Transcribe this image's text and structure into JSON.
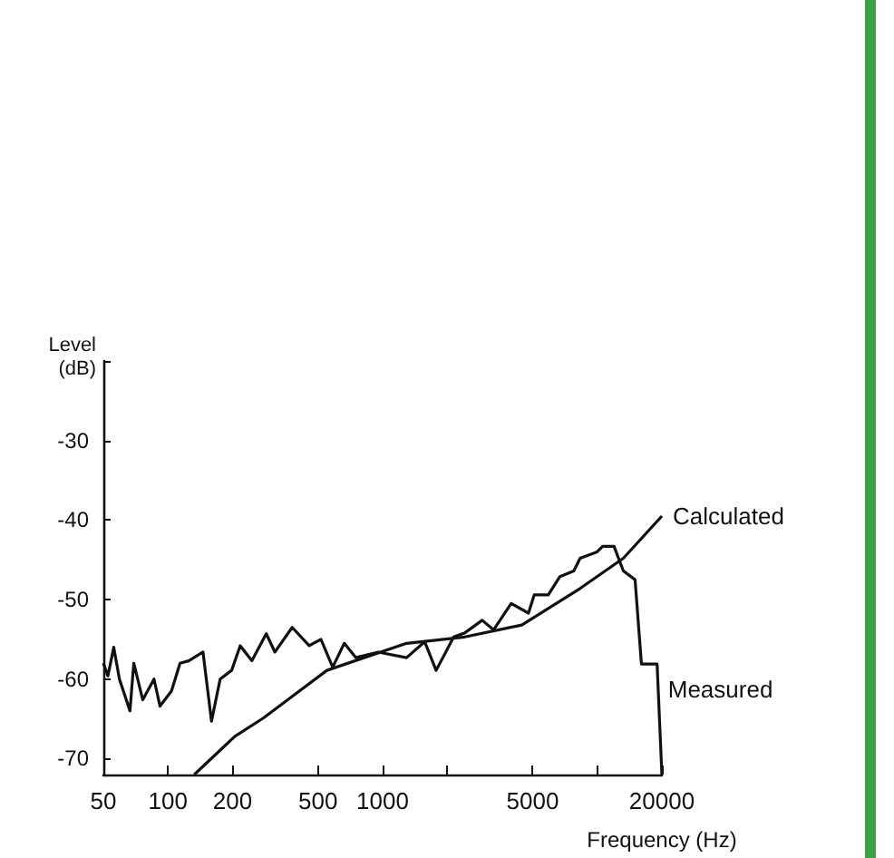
{
  "chart_data": {
    "type": "line",
    "xlabel": "Frequency (Hz)",
    "ylabel": "Level\n(dB)",
    "log": "x",
    "xlim": [
      50,
      20000
    ],
    "ylim": [
      -72,
      -20
    ],
    "xticks": [
      50,
      100,
      200,
      500,
      1000,
      {
        "value": 2000,
        "label": null
      },
      5000,
      {
        "value": 10000,
        "label": null
      },
      20000
    ],
    "yticks": [
      -70,
      -60,
      -50,
      -40,
      -30,
      {
        "value": -20,
        "label": null
      }
    ],
    "grid": false,
    "legend": false,
    "marker": "none",
    "line_style": "solid",
    "series": [
      {
        "name": "Measured",
        "color": "#111111",
        "x": [
          50,
          52.5,
          55.9,
          59.4,
          66.5,
          69.3,
          76.3,
          86.1,
          91.8,
          103.8,
          113.8,
          124.9,
          145.6,
          159.5,
          175,
          198,
          217,
          246,
          287,
          315,
          379,
          455,
          516,
          585,
          663,
          750,
          953,
          1293,
          1571,
          1775,
          2145,
          2412,
          2909,
          3291,
          3971,
          4780,
          5087,
          5912,
          6700,
          7776,
          8320,
          9986,
          10600,
          11970,
          13230,
          15000,
          16060,
          19000,
          20000
        ],
        "values": [
          -58,
          -59.6,
          -56,
          -60,
          -64,
          -58,
          -62.6,
          -60,
          -63.4,
          -61.5,
          -58,
          -57.7,
          -56.6,
          -65.3,
          -60,
          -58.9,
          -55.8,
          -57.7,
          -54.3,
          -56.6,
          -53.5,
          -55.8,
          -55,
          -58.5,
          -55.5,
          -57.3,
          -56.6,
          -57.3,
          -55.3,
          -58.9,
          -54.7,
          -54.2,
          -52.6,
          -53.8,
          -50.5,
          -51.7,
          -49.4,
          -49.4,
          -47.1,
          -46.4,
          -44.8,
          -44,
          -43.3,
          -43.3,
          -46.4,
          -47.5,
          -58.1,
          -58.1,
          -72
        ]
      },
      {
        "name": "Calculated",
        "color": "#111111",
        "x": [
          132.6,
          205,
          278,
          550,
          1293,
          2412,
          4450,
          8320,
          13230,
          20000
        ],
        "values": [
          -72,
          -67.2,
          -64.9,
          -58.9,
          -55.5,
          -54.7,
          -53.2,
          -48.6,
          -44.8,
          -39.5
        ]
      }
    ]
  }
}
